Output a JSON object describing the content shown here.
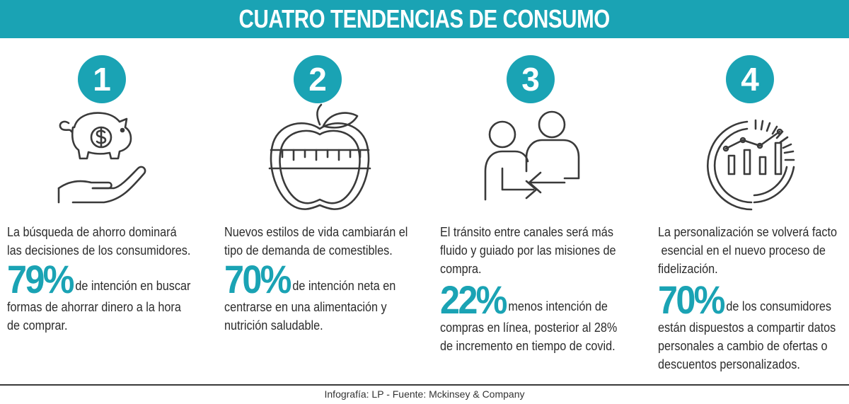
{
  "title": "CUATRO TENDENCIAS DE CONSUMO",
  "accent_color": "#1aa3b4",
  "trends": [
    {
      "number": "1",
      "icon": "piggy-bank-hand-icon",
      "desc_lines": [
        "La búsqueda de ahorro dominará",
        "las decisiones de los consumidores."
      ],
      "percent": "79%",
      "stat_first": "de intención en buscar",
      "stat_lines": [
        "formas de ahorrar dinero a la hora",
        "de comprar."
      ]
    },
    {
      "number": "2",
      "icon": "apple-measuring-tape-icon",
      "desc_lines": [
        "Nuevos estilos de vida cambiarán el",
        "tipo de demanda de comestibles."
      ],
      "percent": "70%",
      "stat_first": "de intención neta en",
      "stat_lines": [
        "centrarse en una alimentación y",
        "nutrición saludable."
      ]
    },
    {
      "number": "3",
      "icon": "people-exchange-icon",
      "desc_lines": [
        "El tránsito entre canales será más",
        "fluido y guiado por las misiones de",
        "compra."
      ],
      "percent": "22%",
      "stat_first": "menos intención de",
      "stat_lines": [
        "compras en línea, posterior al 28%",
        "de incremento en tiempo de covid."
      ]
    },
    {
      "number": "4",
      "icon": "analytics-chart-icon",
      "desc_lines": [
        "La personalización se volverá facto",
        " esencial en el nuevo proceso de",
        "fidelización."
      ],
      "percent": "70%",
      "stat_first": "de los consumidores",
      "stat_lines": [
        "están dispuestos a compartir datos",
        "personales a cambio de ofertas o",
        "descuentos personalizados."
      ]
    }
  ],
  "footer": "Infografía: LP - Fuente: Mckinsey & Company"
}
